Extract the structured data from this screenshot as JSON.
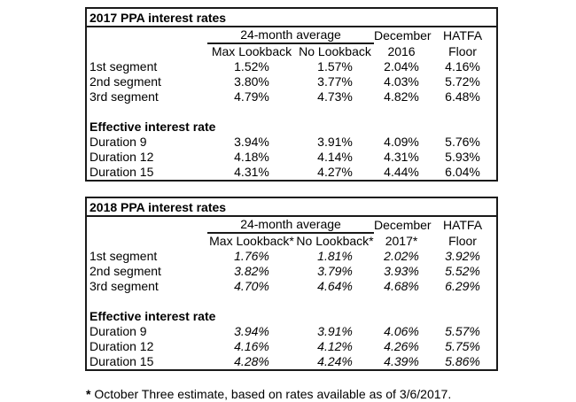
{
  "page": {
    "background_color": "#ffffff",
    "text_color": "#000000",
    "border_color": "#1a1a1a"
  },
  "tables": [
    {
      "title": "2017 PPA interest rates",
      "headers": {
        "group": "24-month average",
        "sub": [
          "Max Lookback",
          "No Lookback"
        ],
        "period_top": "December",
        "period_bottom": "2016",
        "floor_top": "HATFA",
        "floor_bottom": "Floor"
      },
      "values_italic": false,
      "rows": [
        {
          "type": "data",
          "label": "1st segment",
          "values": [
            "1.52%",
            "1.57%",
            "2.04%",
            "4.16%"
          ]
        },
        {
          "type": "data",
          "label": "2nd segment",
          "values": [
            "3.80%",
            "3.77%",
            "4.03%",
            "5.72%"
          ]
        },
        {
          "type": "data",
          "label": "3rd segment",
          "values": [
            "4.79%",
            "4.73%",
            "4.82%",
            "6.48%"
          ]
        },
        {
          "type": "blank",
          "label": "",
          "values": []
        },
        {
          "type": "section",
          "label": "Effective interest rate",
          "values": []
        },
        {
          "type": "data",
          "label": "Duration 9",
          "values": [
            "3.94%",
            "3.91%",
            "4.09%",
            "5.76%"
          ]
        },
        {
          "type": "data",
          "label": "Duration 12",
          "values": [
            "4.18%",
            "4.14%",
            "4.31%",
            "5.93%"
          ]
        },
        {
          "type": "data",
          "label": "Duration 15",
          "values": [
            "4.31%",
            "4.27%",
            "4.44%",
            "6.04%"
          ]
        }
      ]
    },
    {
      "title": "2018 PPA interest rates",
      "headers": {
        "group": "24-month average",
        "sub": [
          "Max Lookback*",
          "No Lookback*"
        ],
        "period_top": "December",
        "period_bottom": "2017*",
        "floor_top": "HATFA",
        "floor_bottom": "Floor"
      },
      "values_italic": true,
      "rows": [
        {
          "type": "data",
          "label": "1st segment",
          "values": [
            "1.76%",
            "1.81%",
            "2.02%",
            "3.92%"
          ]
        },
        {
          "type": "data",
          "label": "2nd segment",
          "values": [
            "3.82%",
            "3.79%",
            "3.93%",
            "5.52%"
          ]
        },
        {
          "type": "data",
          "label": "3rd segment",
          "values": [
            "4.70%",
            "4.64%",
            "4.68%",
            "6.29%"
          ]
        },
        {
          "type": "blank",
          "label": "",
          "values": []
        },
        {
          "type": "section",
          "label": "Effective interest rate",
          "values": []
        },
        {
          "type": "data",
          "label": "Duration 9",
          "values": [
            "3.94%",
            "3.91%",
            "4.06%",
            "5.57%"
          ]
        },
        {
          "type": "data",
          "label": "Duration 12",
          "values": [
            "4.16%",
            "4.12%",
            "4.26%",
            "5.75%"
          ]
        },
        {
          "type": "data",
          "label": "Duration 15",
          "values": [
            "4.28%",
            "4.24%",
            "4.39%",
            "5.86%"
          ]
        }
      ]
    }
  ],
  "footnote": {
    "marker": "*",
    "text": "October Three estimate, based on rates available as of 3/6/2017."
  }
}
